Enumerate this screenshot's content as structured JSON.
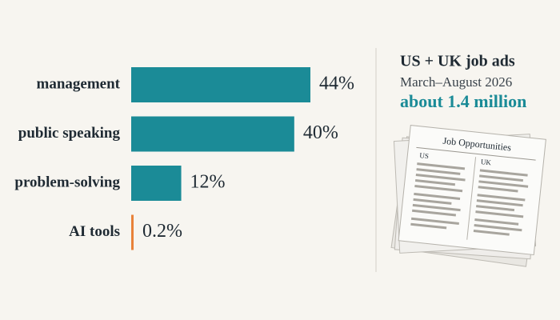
{
  "chart_data": {
    "type": "bar",
    "orientation": "horizontal",
    "title": "US + UK job ads",
    "subtitle": "March–August 2026",
    "annotation": "about 1.4 million",
    "categories": [
      "management",
      "public speaking",
      "problem-solving",
      "AI tools"
    ],
    "values": [
      44,
      40,
      12,
      0.2
    ],
    "value_labels": [
      "44%",
      "40%",
      "12%",
      "0.2%"
    ],
    "colors": [
      "#1b8b97",
      "#1b8b97",
      "#1b8b97",
      "#e8823a"
    ]
  },
  "illustration": {
    "heading": "Job Opportunities",
    "columns": [
      "US",
      "UK"
    ]
  }
}
